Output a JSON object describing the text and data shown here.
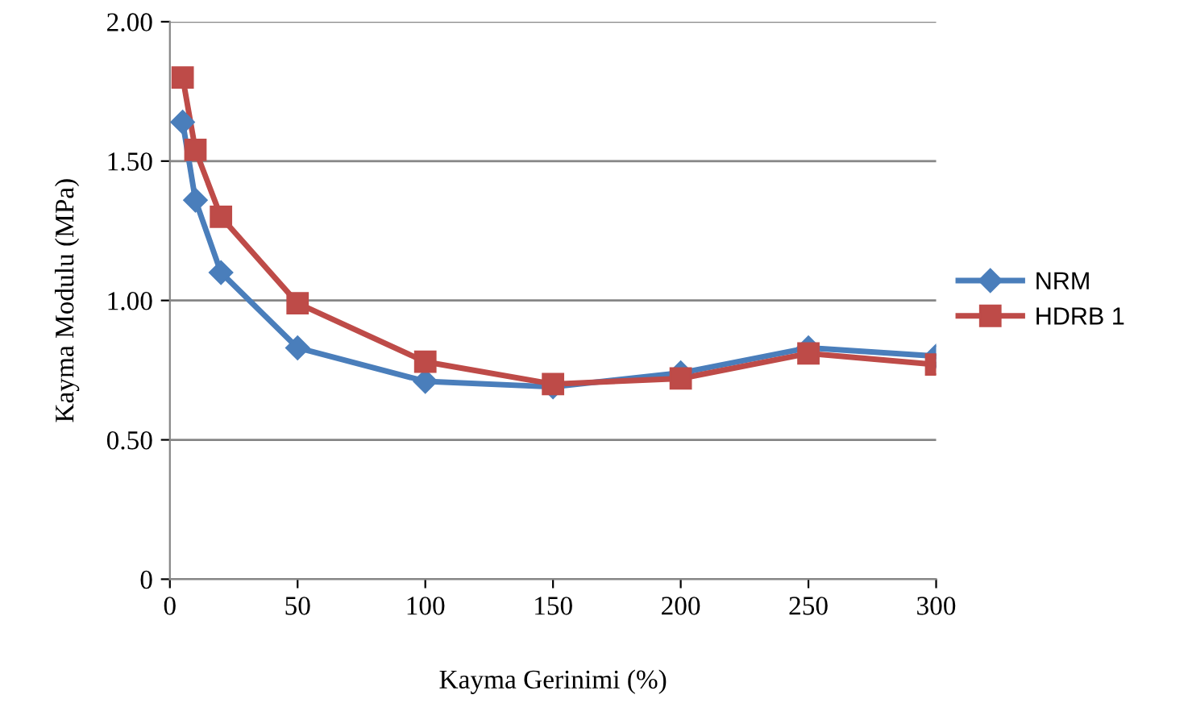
{
  "chart_data": {
    "type": "line",
    "xlabel": "Kayma Gerinimi (%)",
    "ylabel": "Kayma Modulu (MPa)",
    "x": [
      5,
      10,
      20,
      50,
      100,
      150,
      200,
      250,
      300
    ],
    "series": [
      {
        "name": "NRM",
        "color": "#4a7ebb",
        "marker": "diamond",
        "values": [
          1.64,
          1.36,
          1.1,
          0.83,
          0.71,
          0.69,
          0.74,
          0.83,
          0.8
        ]
      },
      {
        "name": "HDRB 1",
        "color": "#be4b48",
        "marker": "square",
        "values": [
          1.8,
          1.54,
          1.3,
          0.99,
          0.78,
          0.7,
          0.72,
          0.81,
          0.77
        ]
      }
    ],
    "xlim": [
      0,
      300
    ],
    "xticks": [
      0,
      50,
      100,
      150,
      200,
      250,
      300
    ],
    "ylim": [
      0,
      2
    ],
    "yticks": [
      0,
      {
        "value": 0.5,
        "label": "0.50"
      },
      {
        "value": 1,
        "label": "1.00"
      },
      {
        "value": 1.5,
        "label": "1.50"
      },
      {
        "value": 2,
        "label": "2.00"
      }
    ],
    "grid": "y",
    "legend": "right",
    "line_style": "solid"
  }
}
